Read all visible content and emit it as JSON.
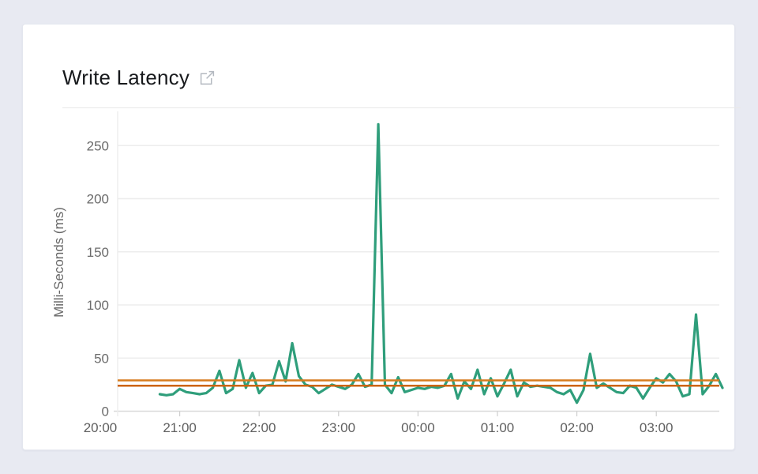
{
  "card": {
    "title": "Write Latency",
    "title_icon": "external-link-icon"
  },
  "colors": {
    "page_bg": "#e8eaf2",
    "card_bg": "#ffffff",
    "title_text": "#17191c",
    "axis_label_text": "#6b6b6b",
    "line": "#2f9e7b",
    "reference_upper": "#d77c1e",
    "reference_lower": "#cc6410",
    "gridline": "#ededed",
    "axis_line": "#d9d9d9"
  },
  "chart_data": {
    "type": "line",
    "title": "Write Latency",
    "xlabel": "",
    "ylabel": "Milli-Seconds (ms)",
    "x_tick_labels": [
      "20:00",
      "21:00",
      "22:00",
      "23:00",
      "00:00",
      "01:00",
      "02:00",
      "03:00"
    ],
    "y_ticks": [
      0,
      50,
      100,
      150,
      200,
      250
    ],
    "ylim": [
      0,
      282
    ],
    "grid": "horizontal-only",
    "legend": "none",
    "reference_lines": [
      {
        "name": "upper-threshold",
        "value": 29,
        "color": "#d77c1e"
      },
      {
        "name": "lower-threshold",
        "value": 24,
        "color": "#cc6410"
      }
    ],
    "series": [
      {
        "name": "write-latency-ms",
        "color": "#2f9e7b",
        "times": [
          "20:45",
          "20:50",
          "20:55",
          "21:00",
          "21:05",
          "21:10",
          "21:15",
          "21:20",
          "21:25",
          "21:30",
          "21:35",
          "21:40",
          "21:45",
          "21:50",
          "21:55",
          "22:00",
          "22:05",
          "22:10",
          "22:15",
          "22:20",
          "22:25",
          "22:30",
          "22:35",
          "22:40",
          "22:45",
          "22:50",
          "22:55",
          "23:00",
          "23:05",
          "23:10",
          "23:15",
          "23:20",
          "23:25",
          "23:30",
          "23:35",
          "23:40",
          "23:45",
          "23:50",
          "23:55",
          "00:00",
          "00:05",
          "00:10",
          "00:15",
          "00:20",
          "00:25",
          "00:30",
          "00:35",
          "00:40",
          "00:45",
          "00:50",
          "00:55",
          "01:00",
          "01:05",
          "01:10",
          "01:15",
          "01:20",
          "01:25",
          "01:30",
          "01:35",
          "01:40",
          "01:45",
          "01:50",
          "01:55",
          "02:00",
          "02:05",
          "02:10",
          "02:15",
          "02:20",
          "02:25",
          "02:30",
          "02:35",
          "02:40",
          "02:45",
          "02:50",
          "02:55",
          "03:00",
          "03:05",
          "03:10",
          "03:15",
          "03:20",
          "03:25",
          "03:30",
          "03:35",
          "03:40",
          "03:45",
          "03:50"
        ],
        "values": [
          16,
          15,
          16,
          21,
          18,
          17,
          16,
          17,
          22,
          38,
          17,
          21,
          48,
          22,
          36,
          17,
          24,
          25,
          47,
          28,
          64,
          33,
          25,
          23,
          17,
          21,
          25,
          23,
          21,
          25,
          35,
          23,
          25,
          270,
          25,
          17,
          32,
          18,
          20,
          22,
          21,
          23,
          22,
          24,
          35,
          12,
          28,
          21,
          39,
          16,
          31,
          14,
          26,
          39,
          14,
          27,
          23,
          24,
          23,
          22,
          18,
          16,
          20,
          8,
          20,
          54,
          22,
          26,
          22,
          18,
          17,
          24,
          22,
          12,
          22,
          31,
          27,
          35,
          28,
          14,
          16,
          91,
          16,
          24,
          35,
          22
        ]
      }
    ]
  }
}
